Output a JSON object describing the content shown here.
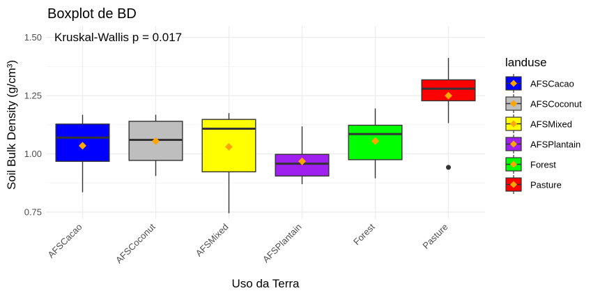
{
  "chart_data": {
    "type": "boxplot",
    "title": "Boxplot de BD",
    "annotation": "Kruskal-Wallis p = 0.017",
    "xlabel": "Uso da Terra",
    "ylabel": "Soil Bulk Density (g/cm³)",
    "ylim": [
      0.72,
      1.55
    ],
    "y_ticks": [
      0.75,
      1.0,
      1.25,
      1.5
    ],
    "y_tick_labels": [
      "0.75",
      "1.00",
      "1.25",
      "1.50"
    ],
    "grid": true,
    "legend": {
      "title": "landuse",
      "position": "right",
      "marker_color": "#FFA500"
    },
    "categories": [
      "AFSCacao",
      "AFSCoconut",
      "AFSMixed",
      "AFSPlantain",
      "Forest",
      "Pasture"
    ],
    "series": [
      {
        "name": "AFSCacao",
        "color": "#0000FF",
        "min": 0.835,
        "q1": 0.968,
        "median": 1.07,
        "q3": 1.128,
        "max": 1.168,
        "mean": 1.035,
        "outliers": []
      },
      {
        "name": "AFSCoconut",
        "color": "#BEBEBE",
        "min": 0.905,
        "q1": 0.972,
        "median": 1.06,
        "q3": 1.14,
        "max": 1.168,
        "mean": 1.055,
        "outliers": []
      },
      {
        "name": "AFSMixed",
        "color": "#FFFF00",
        "min": 0.745,
        "q1": 0.923,
        "median": 1.108,
        "q3": 1.148,
        "max": 1.175,
        "mean": 1.03,
        "outliers": []
      },
      {
        "name": "AFSPlantain",
        "color": "#A020F0",
        "min": 0.87,
        "q1": 0.905,
        "median": 0.958,
        "q3": 0.998,
        "max": 1.118,
        "mean": 0.968,
        "outliers": []
      },
      {
        "name": "Forest",
        "color": "#00FF00",
        "min": 0.895,
        "q1": 0.975,
        "median": 1.085,
        "q3": 1.123,
        "max": 1.195,
        "mean": 1.055,
        "outliers": []
      },
      {
        "name": "Pasture",
        "color": "#FF0000",
        "min": 1.132,
        "q1": 1.228,
        "median": 1.28,
        "q3": 1.318,
        "max": 1.412,
        "mean": 1.25,
        "outliers": [
          0.942
        ]
      }
    ]
  }
}
